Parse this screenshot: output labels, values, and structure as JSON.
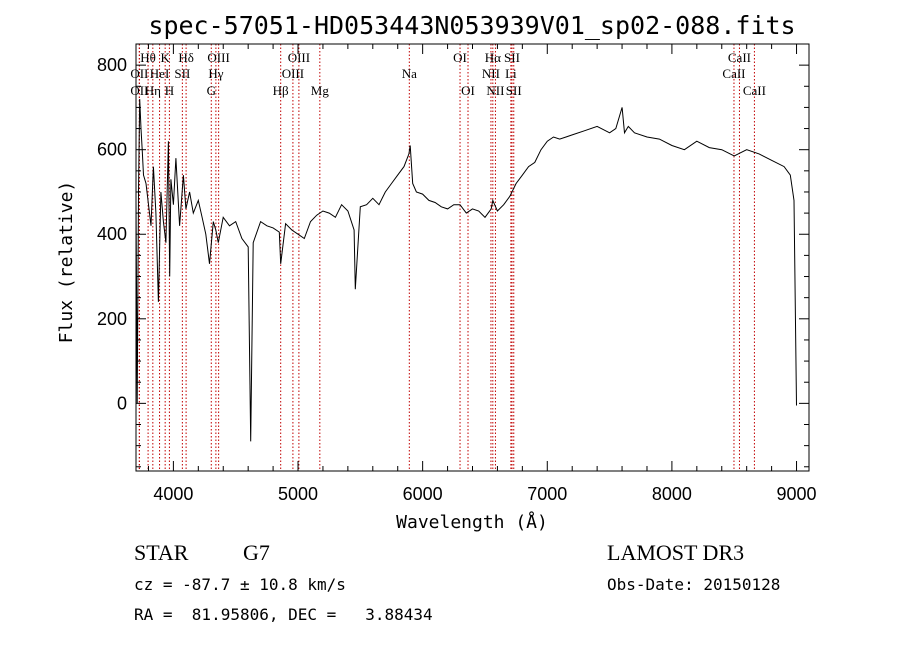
{
  "chart_data": {
    "type": "line",
    "title": "spec-57051-HD053443N053939V01_sp02-088.fits",
    "xlabel": "Wavelength (Å)",
    "ylabel": "Flux (relative)",
    "xlim": [
      3700,
      9100
    ],
    "ylim": [
      -160,
      850
    ],
    "xticks": [
      4000,
      5000,
      6000,
      7000,
      8000,
      9000
    ],
    "yticks": [
      0,
      200,
      400,
      600,
      800
    ],
    "grid": false,
    "colors": {
      "spectrum": "#000000",
      "line_markers": "#c00000"
    },
    "series": [
      {
        "x": [
          3700,
          3710,
          3720,
          3730,
          3740,
          3750,
          3760,
          3780,
          3800,
          3820,
          3840,
          3860,
          3880,
          3900,
          3920,
          3940,
          3960,
          3970,
          3980,
          4000,
          4020,
          4050,
          4080,
          4100,
          4130,
          4160,
          4200,
          4230,
          4260,
          4290,
          4320,
          4340,
          4360,
          4400,
          4450,
          4500,
          4550,
          4600,
          4620,
          4640,
          4700,
          4750,
          4800,
          4850,
          4861,
          4900,
          4950,
          5000,
          5050,
          5100,
          5150,
          5200,
          5250,
          5300,
          5350,
          5400,
          5450,
          5460,
          5500,
          5550,
          5600,
          5650,
          5700,
          5750,
          5800,
          5850,
          5890,
          5900,
          5920,
          5950,
          6000,
          6050,
          6100,
          6150,
          6200,
          6250,
          6300,
          6350,
          6400,
          6450,
          6500,
          6550,
          6563,
          6600,
          6650,
          6700,
          6750,
          6800,
          6850,
          6900,
          6950,
          7000,
          7050,
          7100,
          7150,
          7200,
          7300,
          7400,
          7500,
          7550,
          7600,
          7620,
          7650,
          7700,
          7800,
          7900,
          8000,
          8100,
          8200,
          8300,
          8400,
          8500,
          8600,
          8700,
          8800,
          8900,
          8950,
          8980,
          9000
        ],
        "values": [
          480,
          0,
          500,
          720,
          650,
          600,
          540,
          520,
          470,
          420,
          560,
          450,
          240,
          500,
          430,
          380,
          620,
          300,
          530,
          470,
          580,
          420,
          540,
          460,
          500,
          450,
          480,
          440,
          400,
          330,
          430,
          410,
          380,
          440,
          420,
          430,
          390,
          370,
          -90,
          380,
          430,
          420,
          415,
          405,
          330,
          425,
          410,
          400,
          390,
          430,
          445,
          455,
          450,
          440,
          470,
          455,
          410,
          270,
          465,
          470,
          485,
          470,
          500,
          520,
          540,
          560,
          590,
          610,
          520,
          500,
          495,
          480,
          475,
          465,
          460,
          470,
          470,
          450,
          460,
          455,
          440,
          460,
          480,
          455,
          470,
          490,
          520,
          540,
          560,
          570,
          600,
          620,
          630,
          625,
          630,
          635,
          645,
          655,
          640,
          650,
          700,
          640,
          655,
          640,
          630,
          625,
          610,
          600,
          620,
          605,
          600,
          585,
          600,
          590,
          575,
          560,
          540,
          480,
          -5
        ]
      }
    ],
    "line_markers": [
      {
        "label": "Hθ",
        "x": 3797,
        "row": 1
      },
      {
        "label": "OII",
        "x": 3727,
        "row": 2
      },
      {
        "label": "OII",
        "x": 3727,
        "row": 3
      },
      {
        "label": "Hη",
        "x": 3835,
        "row": 3
      },
      {
        "label": "HeI",
        "x": 3889,
        "row": 2
      },
      {
        "label": "K",
        "x": 3934,
        "row": 1
      },
      {
        "label": "H",
        "x": 3968,
        "row": 3
      },
      {
        "label": "SII",
        "x": 4072,
        "row": 2
      },
      {
        "label": "Hδ",
        "x": 4102,
        "row": 1
      },
      {
        "label": "OIII",
        "x": 4363,
        "row": 1
      },
      {
        "label": "Hγ",
        "x": 4341,
        "row": 2
      },
      {
        "label": "G",
        "x": 4304,
        "row": 3
      },
      {
        "label": "Hβ",
        "x": 4861,
        "row": 3
      },
      {
        "label": "OIII",
        "x": 5007,
        "row": 1
      },
      {
        "label": "OIII",
        "x": 4959,
        "row": 2
      },
      {
        "label": "Mg",
        "x": 5175,
        "row": 3
      },
      {
        "label": "Na",
        "x": 5893,
        "row": 2
      },
      {
        "label": "OI",
        "x": 6300,
        "row": 1
      },
      {
        "label": "OI",
        "x": 6364,
        "row": 3
      },
      {
        "label": "Hα",
        "x": 6563,
        "row": 1
      },
      {
        "label": "NII",
        "x": 6548,
        "row": 2
      },
      {
        "label": "NII",
        "x": 6584,
        "row": 3
      },
      {
        "label": "SII",
        "x": 6717,
        "row": 1
      },
      {
        "label": "Li",
        "x": 6708,
        "row": 2
      },
      {
        "label": "SII",
        "x": 6731,
        "row": 3
      },
      {
        "label": "CaII",
        "x": 8542,
        "row": 1
      },
      {
        "label": "CaII",
        "x": 8498,
        "row": 2
      },
      {
        "label": "CaII",
        "x": 8662,
        "row": 3
      }
    ]
  },
  "info": {
    "object_class": "STAR",
    "subclass": "G7",
    "survey": "LAMOST DR3",
    "cz": "cz = -87.7 ± 10.8 km/s",
    "obs_date": "Obs-Date: 20150128",
    "coords": "RA =  81.95806, DEC =   3.88434"
  }
}
